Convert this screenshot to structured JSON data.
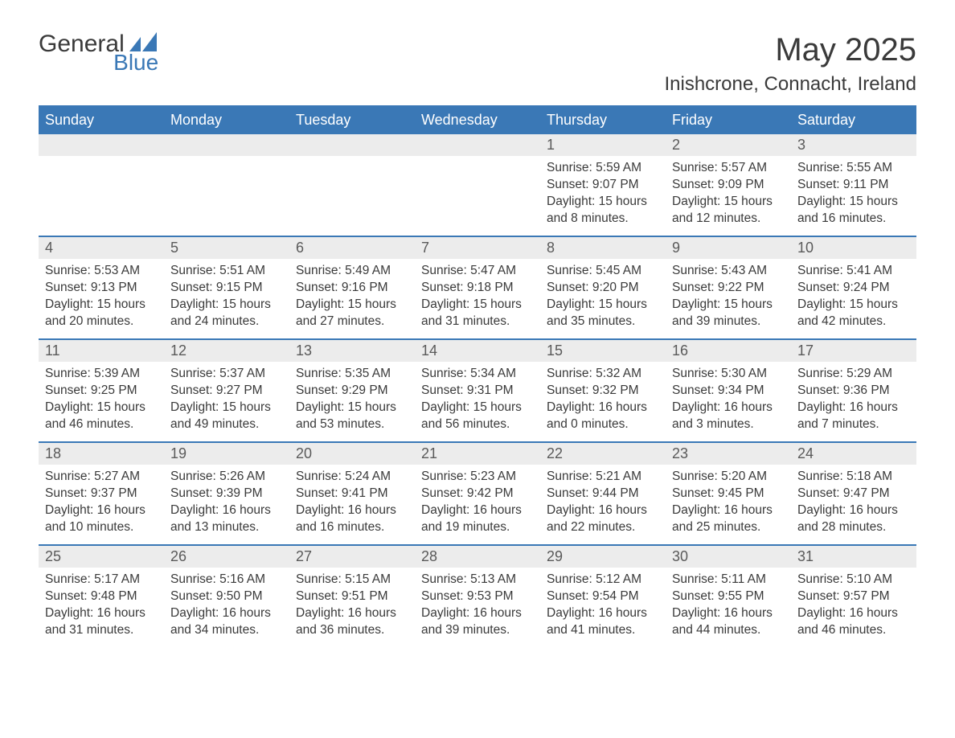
{
  "brand": {
    "general": "General",
    "blue": "Blue"
  },
  "title": "May 2025",
  "location": "Inishcrone, Connacht, Ireland",
  "colors": {
    "accent": "#3a78b6",
    "header_text": "#ffffff",
    "daynum_bg": "#ececec",
    "text": "#3a3a3a"
  },
  "weekdays": [
    "Sunday",
    "Monday",
    "Tuesday",
    "Wednesday",
    "Thursday",
    "Friday",
    "Saturday"
  ],
  "weeks": [
    [
      {
        "n": "",
        "empty": true
      },
      {
        "n": "",
        "empty": true
      },
      {
        "n": "",
        "empty": true
      },
      {
        "n": "",
        "empty": true
      },
      {
        "n": "1",
        "sunrise": "Sunrise: 5:59 AM",
        "sunset": "Sunset: 9:07 PM",
        "day1": "Daylight: 15 hours",
        "day2": "and 8 minutes."
      },
      {
        "n": "2",
        "sunrise": "Sunrise: 5:57 AM",
        "sunset": "Sunset: 9:09 PM",
        "day1": "Daylight: 15 hours",
        "day2": "and 12 minutes."
      },
      {
        "n": "3",
        "sunrise": "Sunrise: 5:55 AM",
        "sunset": "Sunset: 9:11 PM",
        "day1": "Daylight: 15 hours",
        "day2": "and 16 minutes."
      }
    ],
    [
      {
        "n": "4",
        "sunrise": "Sunrise: 5:53 AM",
        "sunset": "Sunset: 9:13 PM",
        "day1": "Daylight: 15 hours",
        "day2": "and 20 minutes."
      },
      {
        "n": "5",
        "sunrise": "Sunrise: 5:51 AM",
        "sunset": "Sunset: 9:15 PM",
        "day1": "Daylight: 15 hours",
        "day2": "and 24 minutes."
      },
      {
        "n": "6",
        "sunrise": "Sunrise: 5:49 AM",
        "sunset": "Sunset: 9:16 PM",
        "day1": "Daylight: 15 hours",
        "day2": "and 27 minutes."
      },
      {
        "n": "7",
        "sunrise": "Sunrise: 5:47 AM",
        "sunset": "Sunset: 9:18 PM",
        "day1": "Daylight: 15 hours",
        "day2": "and 31 minutes."
      },
      {
        "n": "8",
        "sunrise": "Sunrise: 5:45 AM",
        "sunset": "Sunset: 9:20 PM",
        "day1": "Daylight: 15 hours",
        "day2": "and 35 minutes."
      },
      {
        "n": "9",
        "sunrise": "Sunrise: 5:43 AM",
        "sunset": "Sunset: 9:22 PM",
        "day1": "Daylight: 15 hours",
        "day2": "and 39 minutes."
      },
      {
        "n": "10",
        "sunrise": "Sunrise: 5:41 AM",
        "sunset": "Sunset: 9:24 PM",
        "day1": "Daylight: 15 hours",
        "day2": "and 42 minutes."
      }
    ],
    [
      {
        "n": "11",
        "sunrise": "Sunrise: 5:39 AM",
        "sunset": "Sunset: 9:25 PM",
        "day1": "Daylight: 15 hours",
        "day2": "and 46 minutes."
      },
      {
        "n": "12",
        "sunrise": "Sunrise: 5:37 AM",
        "sunset": "Sunset: 9:27 PM",
        "day1": "Daylight: 15 hours",
        "day2": "and 49 minutes."
      },
      {
        "n": "13",
        "sunrise": "Sunrise: 5:35 AM",
        "sunset": "Sunset: 9:29 PM",
        "day1": "Daylight: 15 hours",
        "day2": "and 53 minutes."
      },
      {
        "n": "14",
        "sunrise": "Sunrise: 5:34 AM",
        "sunset": "Sunset: 9:31 PM",
        "day1": "Daylight: 15 hours",
        "day2": "and 56 minutes."
      },
      {
        "n": "15",
        "sunrise": "Sunrise: 5:32 AM",
        "sunset": "Sunset: 9:32 PM",
        "day1": "Daylight: 16 hours",
        "day2": "and 0 minutes."
      },
      {
        "n": "16",
        "sunrise": "Sunrise: 5:30 AM",
        "sunset": "Sunset: 9:34 PM",
        "day1": "Daylight: 16 hours",
        "day2": "and 3 minutes."
      },
      {
        "n": "17",
        "sunrise": "Sunrise: 5:29 AM",
        "sunset": "Sunset: 9:36 PM",
        "day1": "Daylight: 16 hours",
        "day2": "and 7 minutes."
      }
    ],
    [
      {
        "n": "18",
        "sunrise": "Sunrise: 5:27 AM",
        "sunset": "Sunset: 9:37 PM",
        "day1": "Daylight: 16 hours",
        "day2": "and 10 minutes."
      },
      {
        "n": "19",
        "sunrise": "Sunrise: 5:26 AM",
        "sunset": "Sunset: 9:39 PM",
        "day1": "Daylight: 16 hours",
        "day2": "and 13 minutes."
      },
      {
        "n": "20",
        "sunrise": "Sunrise: 5:24 AM",
        "sunset": "Sunset: 9:41 PM",
        "day1": "Daylight: 16 hours",
        "day2": "and 16 minutes."
      },
      {
        "n": "21",
        "sunrise": "Sunrise: 5:23 AM",
        "sunset": "Sunset: 9:42 PM",
        "day1": "Daylight: 16 hours",
        "day2": "and 19 minutes."
      },
      {
        "n": "22",
        "sunrise": "Sunrise: 5:21 AM",
        "sunset": "Sunset: 9:44 PM",
        "day1": "Daylight: 16 hours",
        "day2": "and 22 minutes."
      },
      {
        "n": "23",
        "sunrise": "Sunrise: 5:20 AM",
        "sunset": "Sunset: 9:45 PM",
        "day1": "Daylight: 16 hours",
        "day2": "and 25 minutes."
      },
      {
        "n": "24",
        "sunrise": "Sunrise: 5:18 AM",
        "sunset": "Sunset: 9:47 PM",
        "day1": "Daylight: 16 hours",
        "day2": "and 28 minutes."
      }
    ],
    [
      {
        "n": "25",
        "sunrise": "Sunrise: 5:17 AM",
        "sunset": "Sunset: 9:48 PM",
        "day1": "Daylight: 16 hours",
        "day2": "and 31 minutes."
      },
      {
        "n": "26",
        "sunrise": "Sunrise: 5:16 AM",
        "sunset": "Sunset: 9:50 PM",
        "day1": "Daylight: 16 hours",
        "day2": "and 34 minutes."
      },
      {
        "n": "27",
        "sunrise": "Sunrise: 5:15 AM",
        "sunset": "Sunset: 9:51 PM",
        "day1": "Daylight: 16 hours",
        "day2": "and 36 minutes."
      },
      {
        "n": "28",
        "sunrise": "Sunrise: 5:13 AM",
        "sunset": "Sunset: 9:53 PM",
        "day1": "Daylight: 16 hours",
        "day2": "and 39 minutes."
      },
      {
        "n": "29",
        "sunrise": "Sunrise: 5:12 AM",
        "sunset": "Sunset: 9:54 PM",
        "day1": "Daylight: 16 hours",
        "day2": "and 41 minutes."
      },
      {
        "n": "30",
        "sunrise": "Sunrise: 5:11 AM",
        "sunset": "Sunset: 9:55 PM",
        "day1": "Daylight: 16 hours",
        "day2": "and 44 minutes."
      },
      {
        "n": "31",
        "sunrise": "Sunrise: 5:10 AM",
        "sunset": "Sunset: 9:57 PM",
        "day1": "Daylight: 16 hours",
        "day2": "and 46 minutes."
      }
    ]
  ]
}
